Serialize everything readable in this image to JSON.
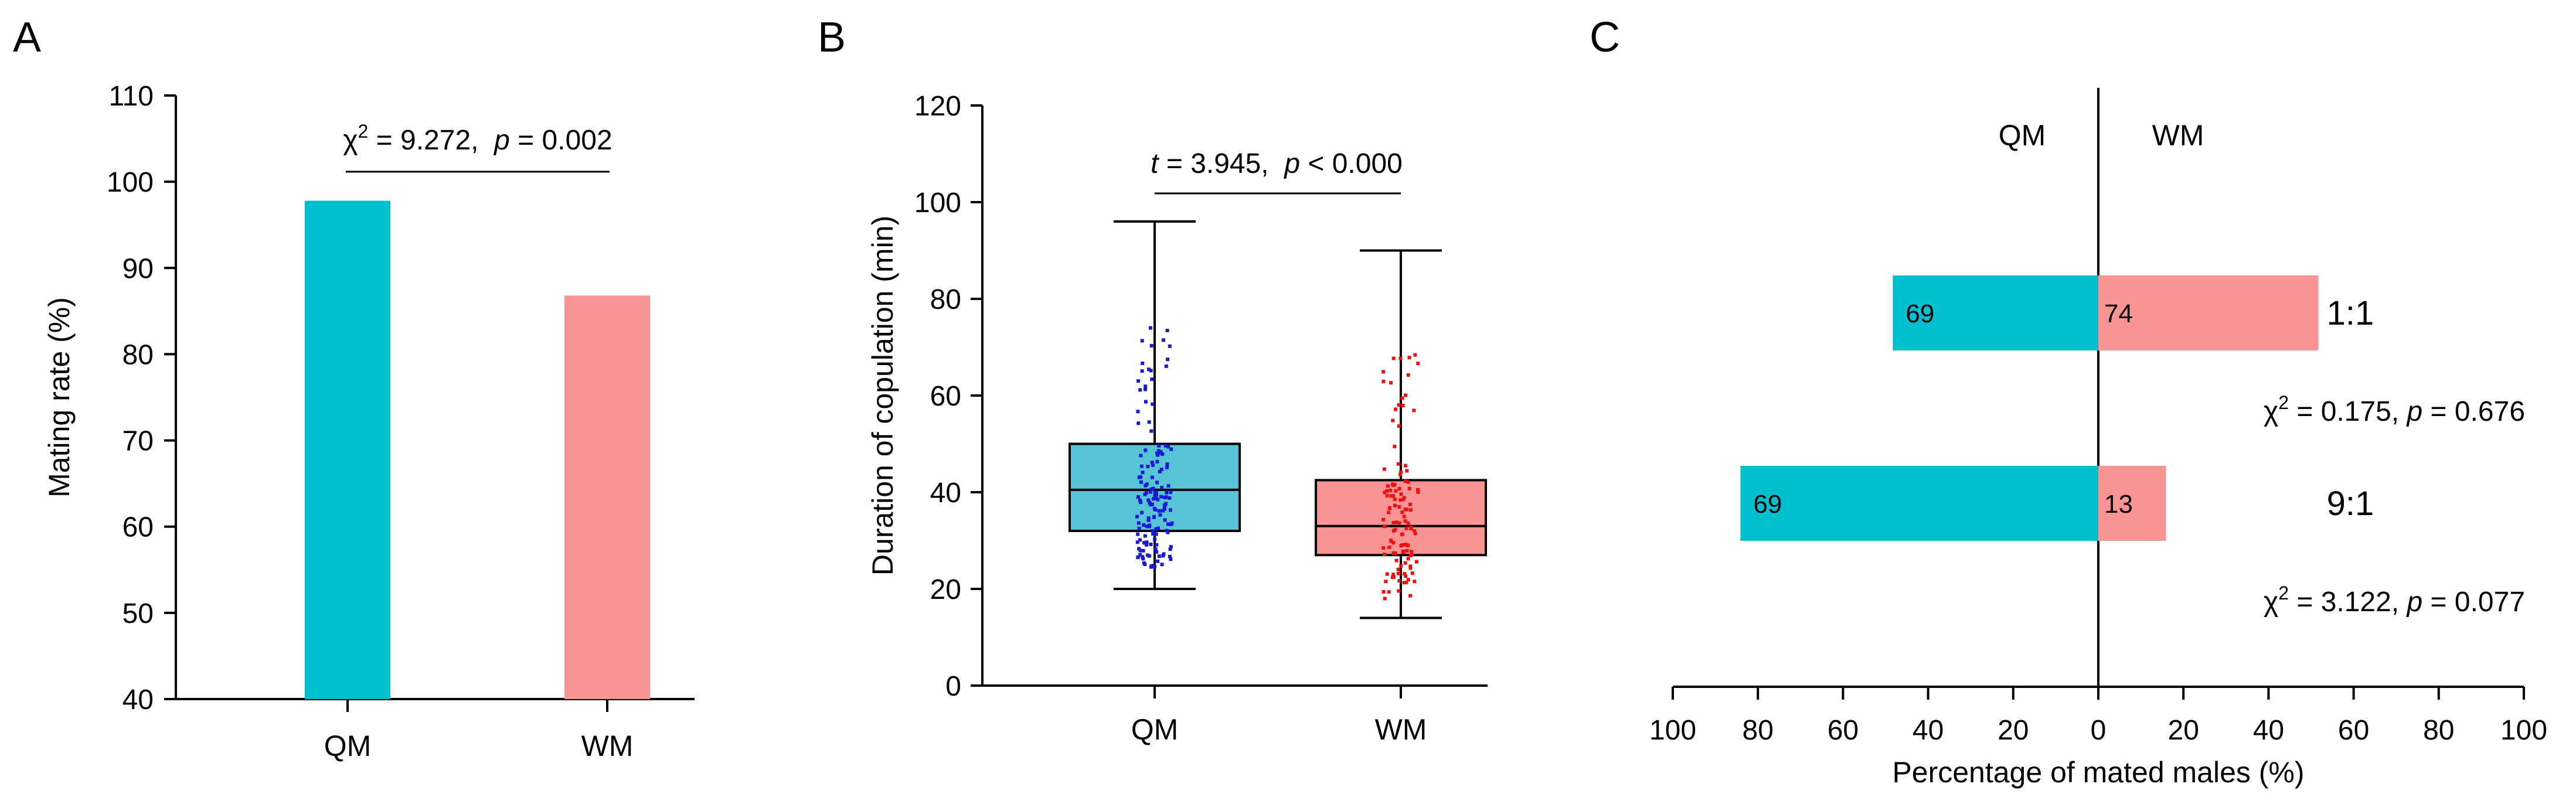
{
  "colors": {
    "qm": "#00BFCF",
    "wm": "#FA9494",
    "qm_box": "#56C4D6",
    "qm_dots": "#1A1AD0",
    "wm_dots": "#EE1111",
    "axis": "#000000"
  },
  "chart_data": [
    {
      "panel": "A",
      "type": "bar",
      "categories": [
        "QM",
        "WM"
      ],
      "values": [
        97.8,
        86.8
      ],
      "ylabel": "Mating rate (%)",
      "ylim": [
        40,
        110
      ],
      "yticks": [
        "40",
        "50",
        "60",
        "70",
        "80",
        "90",
        "100",
        "110"
      ],
      "annotation": {
        "stat": "χ",
        "sup": "2",
        "stat_value": " = 9.272,  ",
        "p_label": "p",
        "p_value": " = 0.002"
      }
    },
    {
      "panel": "B",
      "type": "box",
      "categories": [
        "QM",
        "WM"
      ],
      "ylabel": "Duration of copulation (min)",
      "ylim": [
        0,
        120
      ],
      "yticks": [
        "0",
        "20",
        "40",
        "60",
        "80",
        "100",
        "120"
      ],
      "boxes": [
        {
          "name": "QM",
          "min": 20,
          "q1": 32,
          "median": 40.5,
          "q3": 50,
          "max": 96
        },
        {
          "name": "WM",
          "min": 14,
          "q1": 27,
          "median": 33,
          "q3": 42.5,
          "max": 90
        }
      ],
      "annotation": {
        "stat": "t",
        "stat_value": " = 3.945,  ",
        "p_label": "p",
        "p_value": " < 0.000"
      }
    },
    {
      "panel": "C",
      "type": "bar",
      "orientation": "horizontal-diverging",
      "legend_left": "QM",
      "legend_right": "WM",
      "xlabel": "Percentage of mated males (%)",
      "xticks": [
        "100",
        "80",
        "60",
        "40",
        "20",
        "0",
        "20",
        "40",
        "60",
        "80",
        "100"
      ],
      "series": [
        {
          "ratio": "1:1",
          "qm_percent": 48.3,
          "wm_percent": 51.7,
          "qm_label": "69",
          "wm_label": "74",
          "stat": "χ",
          "sup": "2",
          "stat_value": " = 0.175,  ",
          "p_label": "p",
          "p_value": " = 0.676"
        },
        {
          "ratio": "9:1",
          "qm_percent": 84.1,
          "wm_percent": 15.9,
          "qm_label": "69",
          "wm_label": "13",
          "stat": "χ",
          "sup": "2",
          "stat_value": " = 3.122,  ",
          "p_label": "p",
          "p_value": " = 0.077"
        }
      ]
    }
  ],
  "panel_labels": [
    "A",
    "B",
    "C"
  ]
}
